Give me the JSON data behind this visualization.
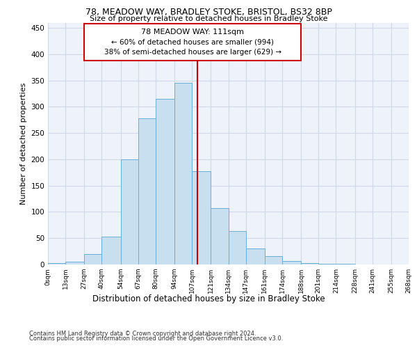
{
  "title1": "78, MEADOW WAY, BRADLEY STOKE, BRISTOL, BS32 8BP",
  "title2": "Size of property relative to detached houses in Bradley Stoke",
  "xlabel": "Distribution of detached houses by size in Bradley Stoke",
  "ylabel": "Number of detached properties",
  "footnote1": "Contains HM Land Registry data © Crown copyright and database right 2024.",
  "footnote2": "Contains public sector information licensed under the Open Government Licence v3.0.",
  "annotation_line1": "78 MEADOW WAY: 111sqm",
  "annotation_line2": "← 60% of detached houses are smaller (994)",
  "annotation_line3": "38% of semi-detached houses are larger (629) →",
  "property_size": 111,
  "bin_edges": [
    0,
    13,
    27,
    40,
    54,
    67,
    80,
    94,
    107,
    121,
    134,
    147,
    161,
    174,
    188,
    201,
    214,
    228,
    241,
    255,
    268
  ],
  "bar_heights": [
    2,
    5,
    20,
    53,
    200,
    278,
    315,
    345,
    177,
    107,
    63,
    30,
    16,
    7,
    2,
    1,
    1,
    0,
    0,
    0
  ],
  "bar_color": "#c8dff0",
  "bar_edge_color": "#6aafd6",
  "vline_color": "#cc0000",
  "box_edge_color": "#cc0000",
  "background_color": "#eef2fa",
  "grid_color": "#d0d8e8",
  "ylim": [
    0,
    460
  ],
  "yticks": [
    0,
    50,
    100,
    150,
    200,
    250,
    300,
    350,
    400,
    450
  ]
}
